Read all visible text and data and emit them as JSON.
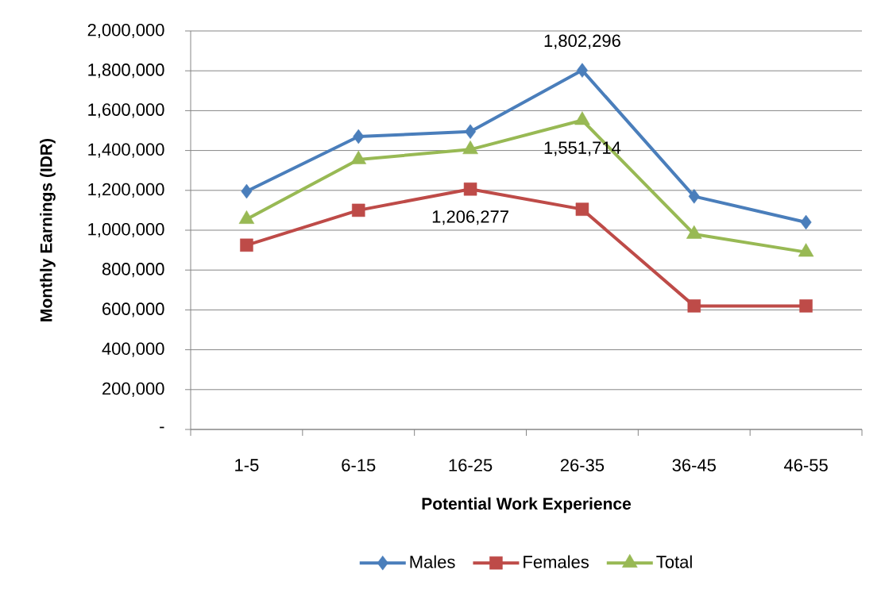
{
  "chart_data": {
    "type": "line",
    "xlabel": "Potential Work Experience",
    "ylabel": "Monthly Earnings (IDR)",
    "categories": [
      "1-5",
      "6-15",
      "16-25",
      "26-35",
      "36-45",
      "46-55"
    ],
    "series": [
      {
        "name": "Males",
        "color": "#4a7ebb",
        "marker": "diamond",
        "values": [
          1195000,
          1470000,
          1495000,
          1802296,
          1170000,
          1040000
        ],
        "value_labels": [
          null,
          null,
          null,
          "1,802,296",
          null,
          null
        ]
      },
      {
        "name": "Females",
        "color": "#be4b48",
        "marker": "square",
        "values": [
          925000,
          1100000,
          1206277,
          1105000,
          620000,
          620000
        ],
        "value_labels": [
          null,
          null,
          "1,206,277",
          null,
          null,
          null
        ]
      },
      {
        "name": "Total",
        "color": "#98b954",
        "marker": "triangle",
        "values": [
          1055000,
          1355000,
          1405000,
          1551714,
          980000,
          890000
        ],
        "value_labels": [
          null,
          null,
          null,
          "1,551,714",
          null,
          null
        ]
      }
    ],
    "ylim": [
      0,
      2000000
    ],
    "yticks": [
      {
        "value": 0,
        "label": "-"
      },
      {
        "value": 200000,
        "label": "200,000"
      },
      {
        "value": 400000,
        "label": "400,000"
      },
      {
        "value": 600000,
        "label": "600,000"
      },
      {
        "value": 800000,
        "label": "800,000"
      },
      {
        "value": 1000000,
        "label": "1,000,000"
      },
      {
        "value": 1200000,
        "label": "1,200,000"
      },
      {
        "value": 1400000,
        "label": "1,400,000"
      },
      {
        "value": 1600000,
        "label": "1,600,000"
      },
      {
        "value": 1800000,
        "label": "1,800,000"
      },
      {
        "value": 2000000,
        "label": "2,000,000"
      }
    ],
    "grid": "y",
    "legend": "bottom"
  }
}
